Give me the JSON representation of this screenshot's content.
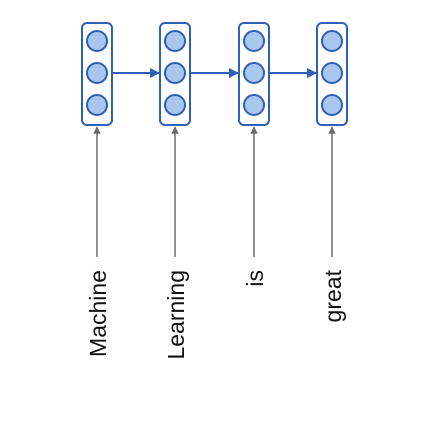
{
  "diagram": {
    "type": "rnn-unrolled",
    "tokens": [
      {
        "word": "Machine"
      },
      {
        "word": "Learning"
      },
      {
        "word": "is"
      },
      {
        "word": "great"
      }
    ],
    "units_per_cell": 3,
    "colors": {
      "cell_border": "#2f5fb8",
      "cell_fill": "#ffffff",
      "unit_fill": "#a9c6ec",
      "unit_stroke": "#2f5fb8",
      "recurrent_arrow": "#2f5fb8",
      "input_arrow": "#6b6b6b",
      "text": "#111111"
    }
  }
}
